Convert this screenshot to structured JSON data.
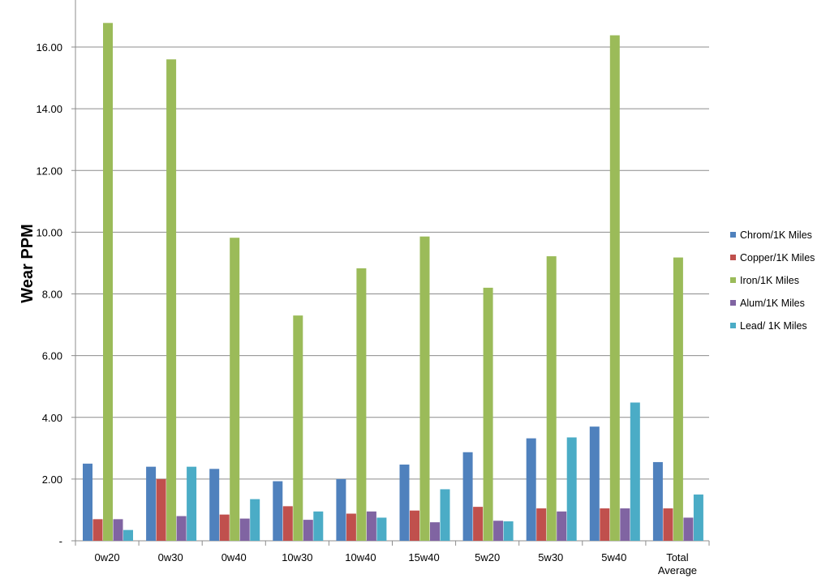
{
  "chart_data": {
    "type": "bar",
    "title": "",
    "xlabel": "",
    "ylabel": "Wear PPM",
    "ylim": [
      0,
      16.8
    ],
    "yticks": [
      0,
      2,
      4,
      6,
      8,
      10,
      12,
      14,
      16
    ],
    "ytick_labels": [
      "-",
      "2.00",
      "4.00",
      "6.00",
      "8.00",
      "10.00",
      "12.00",
      "14.00",
      "16.00"
    ],
    "grid": true,
    "legend_position": "right",
    "categories": [
      "0w20",
      "0w30",
      "0w40",
      "10w30",
      "10w40",
      "15w40",
      "5w20",
      "5w30",
      "5w40",
      "Total Average"
    ],
    "category_labels": [
      [
        "0w20"
      ],
      [
        "0w30"
      ],
      [
        "0w40"
      ],
      [
        "10w30"
      ],
      [
        "10w40"
      ],
      [
        "15w40"
      ],
      [
        "5w20"
      ],
      [
        "5w30"
      ],
      [
        "5w40"
      ],
      [
        "Total",
        "Average"
      ]
    ],
    "series": [
      {
        "name": "Chrom/1K Miles",
        "color": "#4F81BD",
        "values": [
          2.5,
          2.4,
          2.33,
          1.93,
          2.0,
          2.47,
          2.87,
          3.32,
          3.7,
          2.55
        ]
      },
      {
        "name": "Copper/1K Miles",
        "color": "#C0504D",
        "values": [
          0.7,
          2.0,
          0.85,
          1.12,
          0.88,
          0.98,
          1.1,
          1.05,
          1.05,
          1.05
        ]
      },
      {
        "name": "Iron/1K Miles",
        "color": "#9BBB59",
        "values": [
          16.78,
          15.6,
          9.82,
          7.3,
          8.83,
          9.86,
          8.2,
          9.22,
          16.38,
          9.18
        ]
      },
      {
        "name": "Alum/1K Miles",
        "color": "#8064A2",
        "values": [
          0.7,
          0.8,
          0.72,
          0.68,
          0.95,
          0.6,
          0.65,
          0.95,
          1.05,
          0.75
        ]
      },
      {
        "name": "Lead/ 1K Miles",
        "color": "#4BACC6",
        "values": [
          0.35,
          2.4,
          1.35,
          0.95,
          0.75,
          1.67,
          0.63,
          3.35,
          4.48,
          1.5
        ]
      }
    ]
  }
}
